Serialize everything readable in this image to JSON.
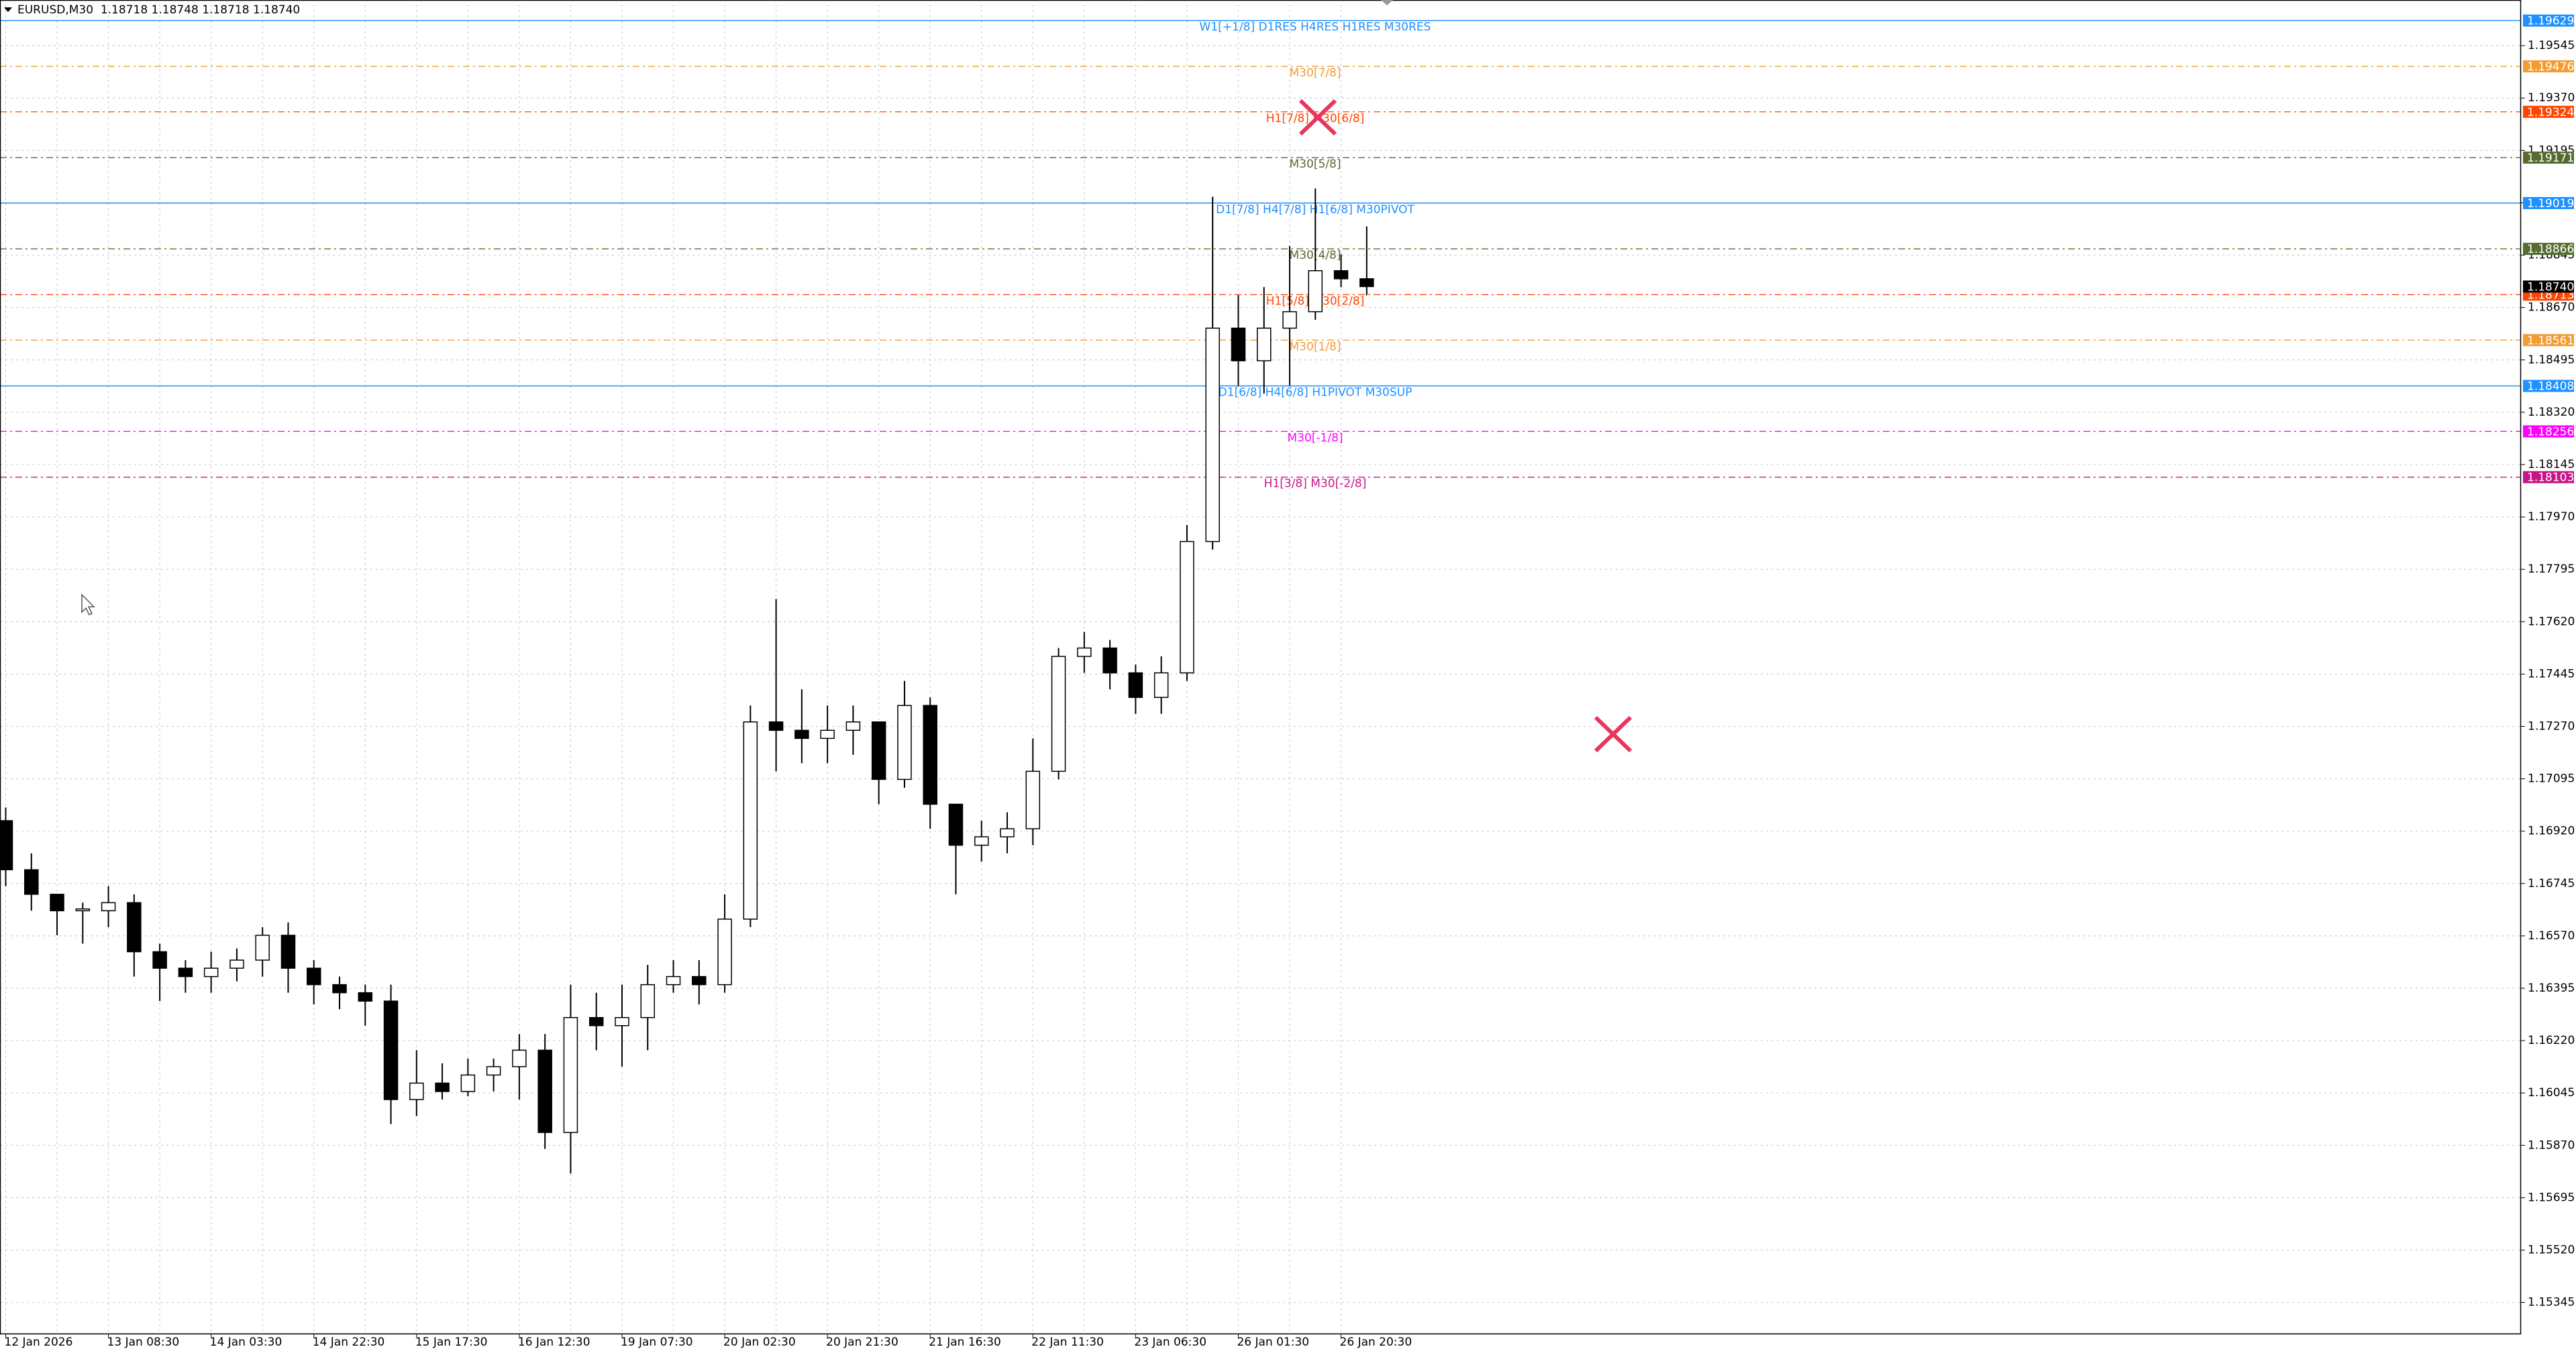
{
  "chart_data": {
    "type": "candlestick",
    "title": "EURUSD,M30  1.18718 1.18748 1.18718 1.18740",
    "categories": [
      "12 Jan 2026",
      null,
      null,
      null,
      "13 Jan 08:30",
      null,
      null,
      null,
      "14 Jan 03:30",
      null,
      null,
      null,
      "14 Jan 22:30",
      null,
      null,
      null,
      "15 Jan 17:30",
      null,
      null,
      null,
      "16 Jan 12:30",
      null,
      null,
      null,
      "19 Jan 07:30",
      null,
      null,
      null,
      "20 Jan 02:30",
      null,
      null,
      null,
      "20 Jan 21:30",
      null,
      null,
      null,
      "21 Jan 16:30",
      null,
      null,
      null,
      "22 Jan 11:30",
      null,
      null,
      null,
      "23 Jan 06:30",
      null,
      null,
      null,
      "26 Jan 01:30",
      null,
      null,
      null,
      "26 Jan 20:30",
      null
    ],
    "open": [
      1.16955,
      1.16791,
      1.16709,
      1.16654,
      1.16654,
      1.16681,
      1.16517,
      1.16462,
      1.16434,
      1.16462,
      1.16489,
      1.16572,
      1.16462,
      1.16407,
      1.1638,
      1.16352,
      1.16023,
      1.16078,
      1.1605,
      1.16105,
      1.16133,
      1.16188,
      1.15913,
      1.16297,
      1.1627,
      1.16297,
      1.16407,
      1.16434,
      1.16407,
      1.16626,
      1.17285,
      1.17257,
      1.1723,
      1.17257,
      1.17285,
      1.17093,
      1.1734,
      1.1701,
      1.16873,
      1.16901,
      1.16928,
      1.1712,
      1.17504,
      1.17532,
      1.17449,
      1.17367,
      1.17449,
      1.17888,
      1.18601,
      1.18492,
      1.18601,
      1.18656,
      1.18793,
      1.18766
    ],
    "high": [
      1.16999,
      1.16846,
      1.16709,
      1.16681,
      1.16736,
      1.16709,
      1.16544,
      1.16489,
      1.16517,
      1.16528,
      1.16599,
      1.16615,
      1.16489,
      1.16434,
      1.16407,
      1.16407,
      1.16188,
      1.16144,
      1.1616,
      1.1616,
      1.16242,
      1.16242,
      1.16407,
      1.1638,
      1.16407,
      1.16473,
      1.16489,
      1.16489,
      1.16709,
      1.1734,
      1.17696,
      1.17394,
      1.1734,
      1.1734,
      1.17285,
      1.17422,
      1.17367,
      1.1701,
      1.16955,
      1.16983,
      1.1723,
      1.17532,
      1.17586,
      1.17559,
      1.17477,
      1.17504,
      1.17943,
      1.1904,
      1.18711,
      1.18738,
      1.18876,
      1.19068,
      1.18848,
      1.18941
    ],
    "low": [
      1.16736,
      1.16654,
      1.16572,
      1.16544,
      1.16599,
      1.16434,
      1.16352,
      1.1638,
      1.1638,
      1.16418,
      1.16434,
      1.1638,
      1.16341,
      1.16325,
      1.1627,
      1.15941,
      1.15968,
      1.16023,
      1.16034,
      1.1605,
      1.16023,
      1.15858,
      1.15776,
      1.16188,
      1.16133,
      1.16188,
      1.1638,
      1.16341,
      1.1638,
      1.16599,
      1.1712,
      1.17147,
      1.17147,
      1.17175,
      1.1701,
      1.17065,
      1.16928,
      1.16709,
      1.16818,
      1.16846,
      1.16873,
      1.17093,
      1.17449,
      1.17394,
      1.17312,
      1.17312,
      1.17422,
      1.17861,
      1.18409,
      1.18382,
      1.18409,
      1.18629,
      1.18738,
      1.18711
    ],
    "close": [
      1.16791,
      1.16709,
      1.16654,
      1.1666,
      1.16681,
      1.16517,
      1.16462,
      1.16434,
      1.16462,
      1.16489,
      1.16572,
      1.16462,
      1.16407,
      1.1638,
      1.16352,
      1.16023,
      1.16078,
      1.1605,
      1.16105,
      1.16133,
      1.16188,
      1.15913,
      1.16297,
      1.1627,
      1.16297,
      1.16407,
      1.16434,
      1.16407,
      1.16626,
      1.17285,
      1.17257,
      1.1723,
      1.17257,
      1.17285,
      1.17093,
      1.1734,
      1.1701,
      1.16873,
      1.16901,
      1.16928,
      1.1712,
      1.17504,
      1.17532,
      1.17449,
      1.17367,
      1.17449,
      1.17888,
      1.18601,
      1.18492,
      1.18601,
      1.18656,
      1.18793,
      1.18766,
      1.1874
    ],
    "up_color": "#ffffff",
    "down_color": "#000000",
    "wick_color": "#000000",
    "ylim": [
      1.15241,
      1.19682
    ],
    "yticks": [
      {
        "value": 1.19545,
        "label": "1.19545"
      },
      {
        "value": 1.1937,
        "label": "1.19370"
      },
      {
        "value": 1.19195,
        "label": "1.19195"
      },
      {
        "value": 1.1902,
        "label": "1.19020"
      },
      {
        "value": 1.18845,
        "label": "1.18845"
      },
      {
        "value": 1.1867,
        "label": "1.18670"
      },
      {
        "value": 1.18495,
        "label": "1.18495"
      },
      {
        "value": 1.1832,
        "label": "1.18320"
      },
      {
        "value": 1.18145,
        "label": "1.18145"
      },
      {
        "value": 1.1797,
        "label": "1.17970"
      },
      {
        "value": 1.17795,
        "label": "1.17795"
      },
      {
        "value": 1.1762,
        "label": "1.17620"
      },
      {
        "value": 1.17445,
        "label": "1.17445"
      },
      {
        "value": 1.1727,
        "label": "1.17270"
      },
      {
        "value": 1.17095,
        "label": "1.17095"
      },
      {
        "value": 1.1692,
        "label": "1.16920"
      },
      {
        "value": 1.16745,
        "label": "1.16745"
      },
      {
        "value": 1.1657,
        "label": "1.16570"
      },
      {
        "value": 1.16395,
        "label": "1.16395"
      },
      {
        "value": 1.1622,
        "label": "1.16220"
      },
      {
        "value": 1.16045,
        "label": "1.16045"
      },
      {
        "value": 1.1587,
        "label": "1.15870"
      },
      {
        "value": 1.15695,
        "label": "1.15695"
      },
      {
        "value": 1.1552,
        "label": "1.15520"
      },
      {
        "value": 1.15345,
        "label": "1.15345"
      }
    ],
    "grid": true,
    "levels": [
      {
        "value": 1.19629,
        "label": "W1[+1/8] D1RES H4RES H1RES M30RES",
        "color": "#1e90ff",
        "style": "solid"
      },
      {
        "value": 1.19476,
        "label": "M30[7/8]",
        "color": "#f39c32",
        "style": "dashdot"
      },
      {
        "value": 1.19324,
        "label": "H1[7/8] M30[6/8]",
        "color": "#ff4500",
        "style": "dashdot"
      },
      {
        "value": 1.19171,
        "label": "M30[5/8]",
        "color": "#556b2f",
        "style": "dashdot"
      },
      {
        "value": 1.19019,
        "label": "D1[7/8] H4[7/8] H1[6/8] M30PIVOT",
        "color": "#1e90ff",
        "style": "solid"
      },
      {
        "value": 1.18866,
        "label": "M30[4/8]",
        "color": "#556b2f",
        "style": "dashdot"
      },
      {
        "value": 1.18713,
        "label": "H1[5/8] M30[2/8]",
        "color": "#ff4500",
        "style": "dashdot"
      },
      {
        "value": 1.1874,
        "value_label": "1.18740",
        "color": "#000000",
        "style": "none"
      },
      {
        "value": 1.18561,
        "label": "M30[1/8]",
        "color": "#f39c32",
        "style": "dashdot"
      },
      {
        "value": 1.18408,
        "label": "D1[6/8] H4[6/8] H1PIVOT M30SUP",
        "color": "#1e90ff",
        "style": "solid"
      },
      {
        "value": 1.18256,
        "label": "M30[-1/8]",
        "color": "#ff00ff",
        "style": "dashdot"
      },
      {
        "value": 1.18103,
        "label": "H1[3/8] M30[-2/8]",
        "color": "#c71585",
        "style": "dashdot"
      }
    ]
  }
}
